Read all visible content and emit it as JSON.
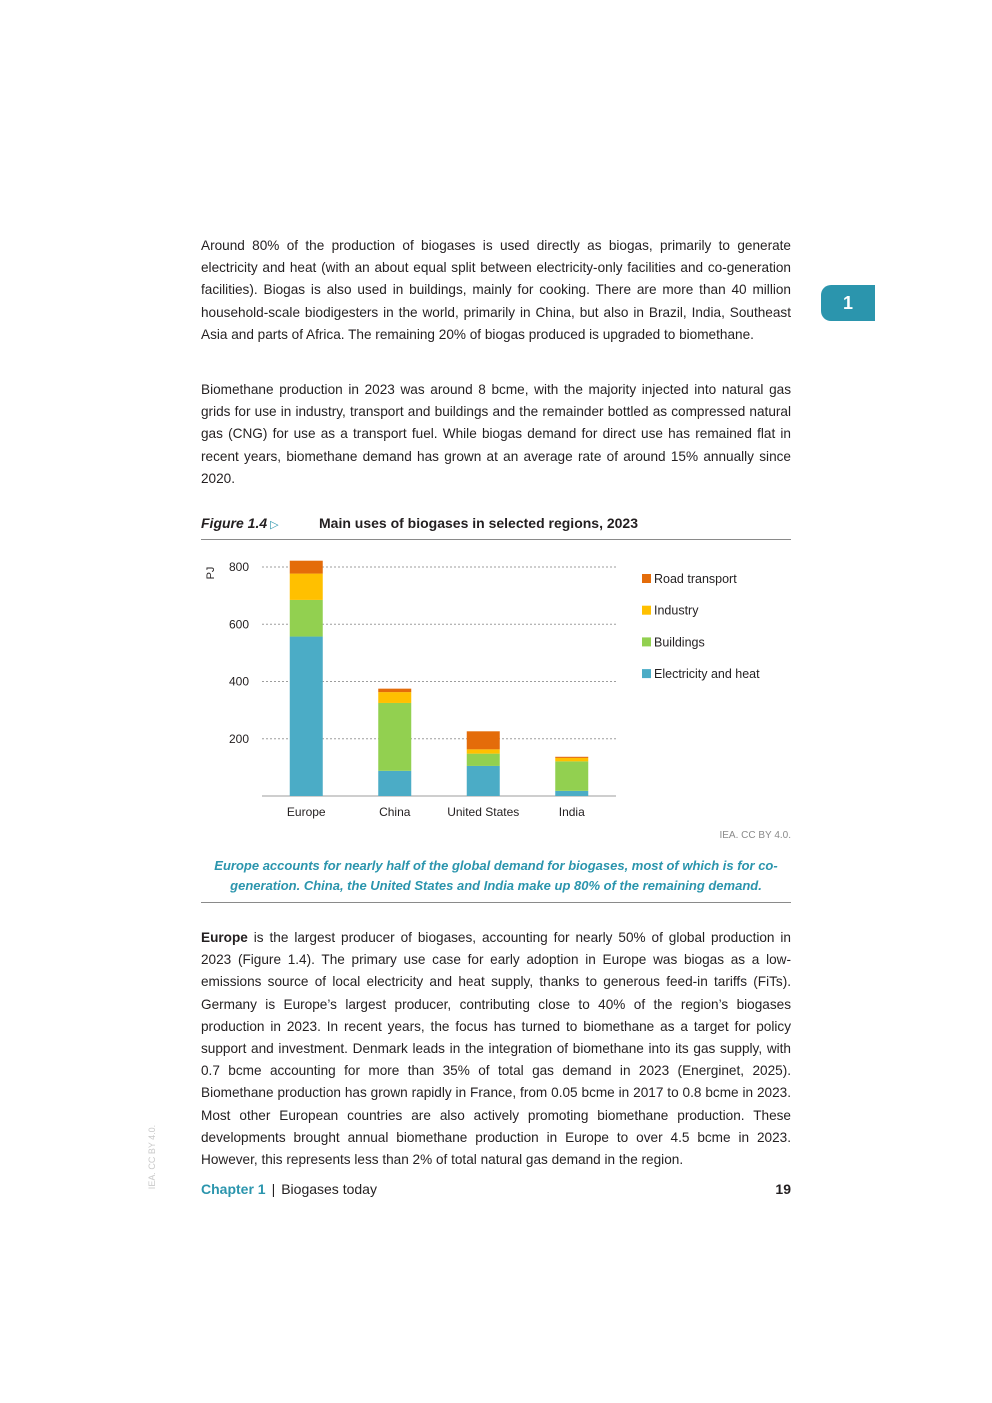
{
  "chapter_tab": "1",
  "paragraphs": {
    "p1": "Around 80% of the production of biogases is used directly as biogas, primarily to generate electricity and heat (with an about equal split between electricity-only facilities and co-generation facilities). Biogas is also used in buildings, mainly for cooking. There are more than 40 million household-scale biodigesters in the world, primarily in China, but also in Brazil, India, Southeast Asia and parts of Africa. The remaining 20% of biogas produced is upgraded to biomethane.",
    "p2": "Biomethane production in 2023 was around 8 bcme, with the majority injected into natural gas grids for use in industry, transport and buildings and the remainder bottled as compressed natural gas (CNG) for use as a transport fuel. While biogas demand for direct use has remained flat in recent years, biomethane demand has grown at an average rate of around 15% annually since 2020.",
    "p3_bold": "Europe",
    "p3_rest": " is the largest producer of biogases, accounting for nearly 50% of global production in 2023 (Figure 1.4). The primary use case for early adoption in Europe was biogas as a low-emissions source of local electricity and heat supply, thanks to generous feed-in tariffs (FiTs). Germany is Europe’s largest producer, contributing close to 40% of the region’s biogases production in 2023. In recent years, the focus has turned to biomethane as a target for policy support and investment. Denmark leads in the integration of biomethane into its gas supply, with 0.7 bcme accounting for more than 35% of total gas demand in 2023 (Energinet, 2025). Biomethane production has grown rapidly in France, from 0.05 bcme in 2017 to 0.8 bcme in 2023.  Most other European countries are also actively promoting biomethane production. These developments brought annual biomethane production in Europe to over 4.5 bcme in 2023. However, this represents less than 2% of total natural gas demand in the region."
  },
  "figure": {
    "number": "Figure 1.4",
    "arrow": "▷",
    "title": "Main uses of biogases in selected regions, 2023",
    "credit": "IEA. CC BY 4.0.",
    "note_line1": "Europe accounts for nearly half of the global demand for biogases, most of which is for co-",
    "note_line2": "generation. China, the United States and India make up 80% of the remaining demand."
  },
  "chart_data": {
    "type": "bar",
    "stacked": true,
    "ylabel": "PJ",
    "ylim": [
      0,
      800
    ],
    "yticks": [
      200,
      400,
      600,
      800
    ],
    "grid": true,
    "legend_position": "right",
    "categories": [
      "Europe",
      "China",
      "United States",
      "India"
    ],
    "series": [
      {
        "name": "Electricity and heat",
        "color": "#4bacc6",
        "values": [
          557,
          88,
          105,
          18
        ]
      },
      {
        "name": "Buildings",
        "color": "#92d050",
        "values": [
          128,
          237,
          43,
          103
        ]
      },
      {
        "name": "Industry",
        "color": "#ffc000",
        "values": [
          92,
          38,
          15,
          12
        ]
      },
      {
        "name": "Road transport",
        "color": "#e46c0a",
        "values": [
          45,
          12,
          63,
          4
        ]
      }
    ]
  },
  "side_credit": "IEA. CC BY 4.0.",
  "footer": {
    "chapter": "Chapter 1",
    "separator": "|",
    "section": "Biogases today",
    "page": "19"
  }
}
